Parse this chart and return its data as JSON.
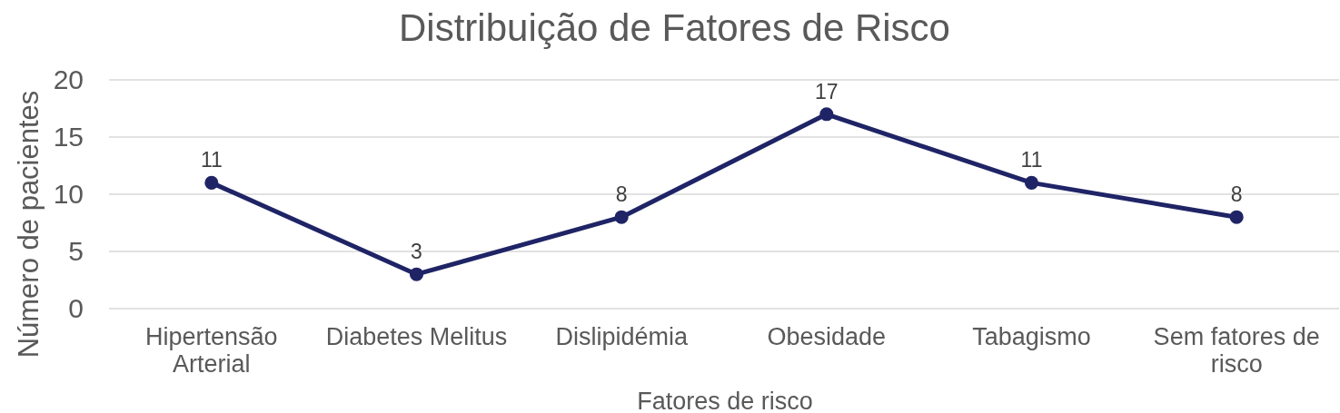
{
  "chart_data": {
    "type": "line",
    "title": "Distribuição de Fatores de Risco",
    "xlabel": "Fatores de risco",
    "ylabel": "Número de pacientes",
    "categories": [
      "Hipertensão Arterial",
      "Diabetes Melitus",
      "Dislipidémia",
      "Obesidade",
      "Tabagismo",
      "Sem fatores de risco"
    ],
    "series": [
      {
        "color": "#1f2466",
        "values": [
          11,
          3,
          8,
          17,
          11,
          8
        ]
      }
    ],
    "ylim": [
      0,
      20
    ],
    "yticks": [
      0,
      5,
      10,
      15,
      20
    ],
    "grid": "y",
    "marker": "circle",
    "line_style": "solid",
    "data_labels": true
  }
}
